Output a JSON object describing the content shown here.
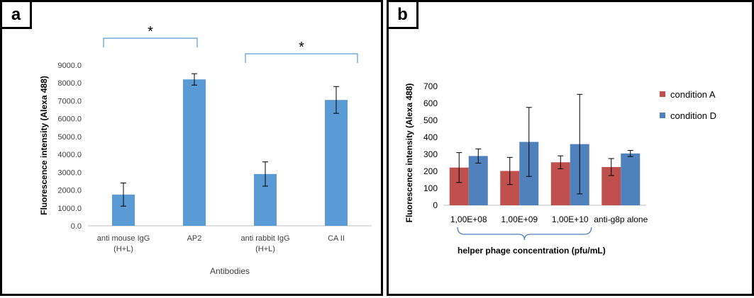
{
  "panels": [
    {
      "label": "a"
    },
    {
      "label": "b"
    }
  ],
  "chart_data": [
    {
      "type": "bar",
      "title": "",
      "xlabel": "Antibodies",
      "ylabel": "Fluorescence intensity (Alexa 488)",
      "categories": [
        "anti mouse IgG\n(H+L)",
        "AP2",
        "anti rabbit IgG\n(H+L)",
        "CA II"
      ],
      "values": [
        1750,
        8200,
        2900,
        7050
      ],
      "errors": [
        650,
        320,
        680,
        750
      ],
      "ylim": [
        0,
        9000
      ],
      "yticks": [
        "0.0",
        "1000.0",
        "2000.0",
        "3000.0",
        "4000.0",
        "5000.0",
        "6000.0",
        "7000.0",
        "8000.0",
        "9000.0"
      ],
      "bar_color": "#5b9bd5",
      "grid": false,
      "annotations": [
        {
          "text": "*",
          "from": 0,
          "to": 1
        },
        {
          "text": "*",
          "from": 2,
          "to": 3
        }
      ]
    },
    {
      "type": "bar",
      "title": "",
      "xlabel": "helper phage concentration (pfu/mL)",
      "ylabel": "Fluorescence intensity (Alexa 488)",
      "categories": [
        "1,00E+08",
        "1,00E+09",
        "1,00E+10",
        "anti-g8p alone"
      ],
      "series": [
        {
          "name": "condition A",
          "values": [
            222,
            202,
            253,
            225
          ],
          "errors": [
            88,
            80,
            38,
            50
          ],
          "color": "#c0504d"
        },
        {
          "name": "condition D",
          "values": [
            290,
            373,
            360,
            305
          ],
          "errors": [
            42,
            203,
            293,
            18
          ],
          "color": "#4f81bd"
        }
      ],
      "ylim": [
        0,
        700
      ],
      "yticks": [
        "0",
        "100",
        "200",
        "300",
        "400",
        "500",
        "600",
        "700"
      ],
      "grid": false,
      "legend": "right",
      "brace_span": [
        0,
        2
      ]
    }
  ]
}
